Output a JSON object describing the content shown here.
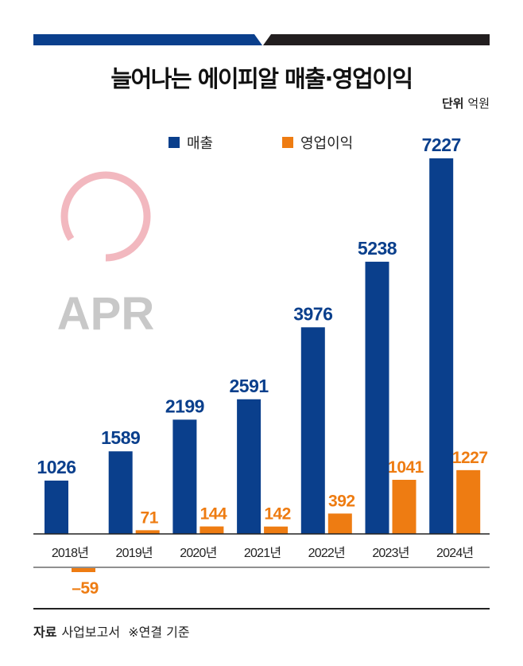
{
  "title": "늘어나는 에이피알 매출·영업이익",
  "unit_label": "단위",
  "unit_value": "억원",
  "logo_text": "APR",
  "colors": {
    "revenue": "#0a3f8c",
    "profit": "#ee7c12",
    "bar_dark": "#221e1f",
    "logo_ring": "#f2b8bf",
    "logo_text": "#c8c8c8"
  },
  "source_label": "자료",
  "source_value": "사업보고서",
  "note": "※연결 기준",
  "chart_data": {
    "type": "bar",
    "title": "늘어나는 에이피알 매출·영업이익",
    "xlabel": "",
    "ylabel": "억원",
    "categories": [
      "2018년",
      "2019년",
      "2020년",
      "2021년",
      "2022년",
      "2023년",
      "2024년"
    ],
    "series": [
      {
        "name": "매출",
        "values": [
          1026,
          1589,
          2199,
          2591,
          3976,
          5238,
          7227
        ]
      },
      {
        "name": "영업이익",
        "values": [
          -59,
          71,
          144,
          142,
          392,
          1041,
          1227
        ]
      }
    ],
    "legend": "top-center",
    "grid": false
  }
}
